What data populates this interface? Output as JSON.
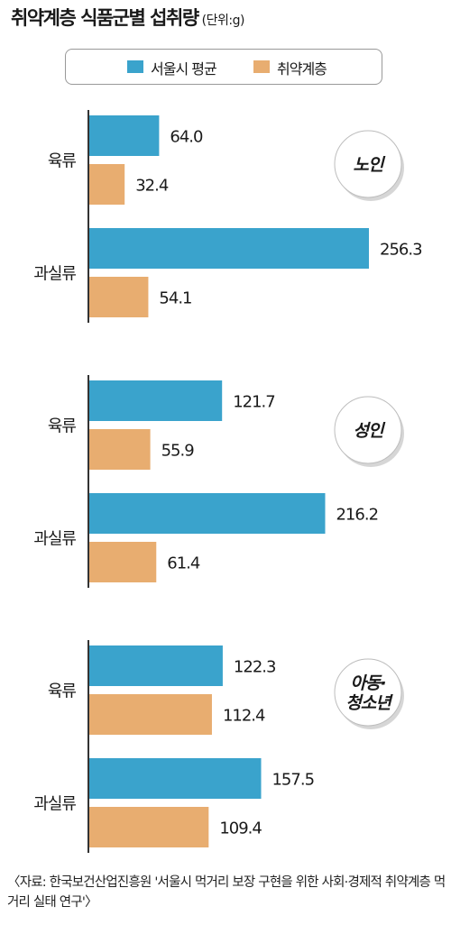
{
  "title": "취약계층 식품군별 섭취량",
  "unit": "(단위:g)",
  "colors": {
    "seoul": "#3aa3cc",
    "vulnerable": "#e8ad70",
    "axis": "#333333",
    "badge_border": "#bdbdbd"
  },
  "legend": [
    {
      "label": "서울시 평균",
      "color": "#3aa3cc"
    },
    {
      "label": "취약계층",
      "color": "#e8ad70"
    }
  ],
  "chart_data": {
    "type": "bar",
    "orientation": "horizontal",
    "xlim": [
      0,
      256.3
    ],
    "series_names": [
      "서울시 평균",
      "취약계층"
    ],
    "groups": [
      {
        "badge_lines": [
          "노인"
        ],
        "categories": [
          {
            "label": "육류",
            "values": [
              64.0,
              32.4
            ],
            "value_labels": [
              "64.0",
              "32.4"
            ]
          },
          {
            "label": "과실류",
            "values": [
              256.3,
              54.1
            ],
            "value_labels": [
              "256.3",
              "54.1"
            ]
          }
        ]
      },
      {
        "badge_lines": [
          "성인"
        ],
        "categories": [
          {
            "label": "육류",
            "values": [
              121.7,
              55.9
            ],
            "value_labels": [
              "121.7",
              "55.9"
            ]
          },
          {
            "label": "과실류",
            "values": [
              216.2,
              61.4
            ],
            "value_labels": [
              "216.2",
              "61.4"
            ]
          }
        ]
      },
      {
        "badge_lines": [
          "아동·",
          "청소년"
        ],
        "categories": [
          {
            "label": "육류",
            "values": [
              122.3,
              112.4
            ],
            "value_labels": [
              "122.3",
              "112.4"
            ]
          },
          {
            "label": "과실류",
            "values": [
              157.5,
              109.4
            ],
            "value_labels": [
              "157.5",
              "109.4"
            ]
          }
        ]
      }
    ]
  },
  "source_text": "〈자료: 한국보건산업진흥원 '서울시 먹거리 보장 구현을 위한 사회·경제적 취약계층 먹거리 실태 연구'〉"
}
